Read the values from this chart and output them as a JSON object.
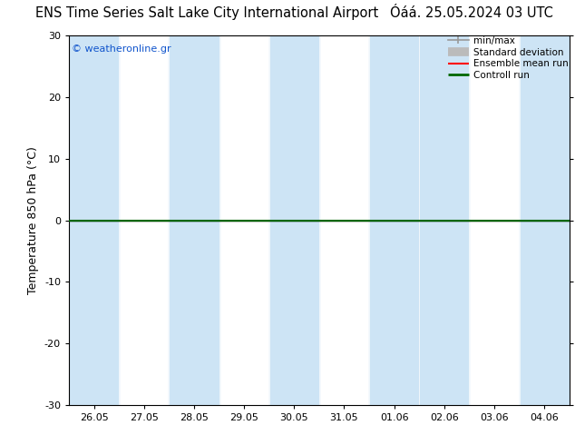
{
  "title_left": "ENS Time Series Salt Lake City International Airport",
  "title_right": "Óáá. 25.05.2024 03 UTC",
  "ylabel": "Temperature 850 hPa (°C)",
  "watermark": "© weatheronline.gr",
  "xlim_dates": [
    "26.05",
    "27.05",
    "28.05",
    "29.05",
    "30.05",
    "31.05",
    "01.06",
    "02.06",
    "03.06",
    "04.06"
  ],
  "ylim": [
    -30,
    30
  ],
  "yticks": [
    -30,
    -20,
    -10,
    0,
    10,
    20,
    30
  ],
  "bg_color": "#ffffff",
  "plot_bg_color": "#ffffff",
  "blue_col_color": "#cde4f5",
  "blue_columns": [
    0,
    2,
    4,
    6,
    7,
    9
  ],
  "zero_line_color": "#000000",
  "controll_line_color": "#006600",
  "legend_items": [
    {
      "label": "min/max",
      "color": "#999999",
      "lw": 1.2
    },
    {
      "label": "Standard deviation",
      "color": "#bbbbbb",
      "lw": 5
    },
    {
      "label": "Ensemble mean run",
      "color": "#ff0000",
      "lw": 1.5
    },
    {
      "label": "Controll run",
      "color": "#006600",
      "lw": 2
    }
  ],
  "title_fontsize": 10.5,
  "axis_fontsize": 9,
  "tick_fontsize": 8,
  "watermark_color": "#1155cc",
  "watermark_fontsize": 8
}
